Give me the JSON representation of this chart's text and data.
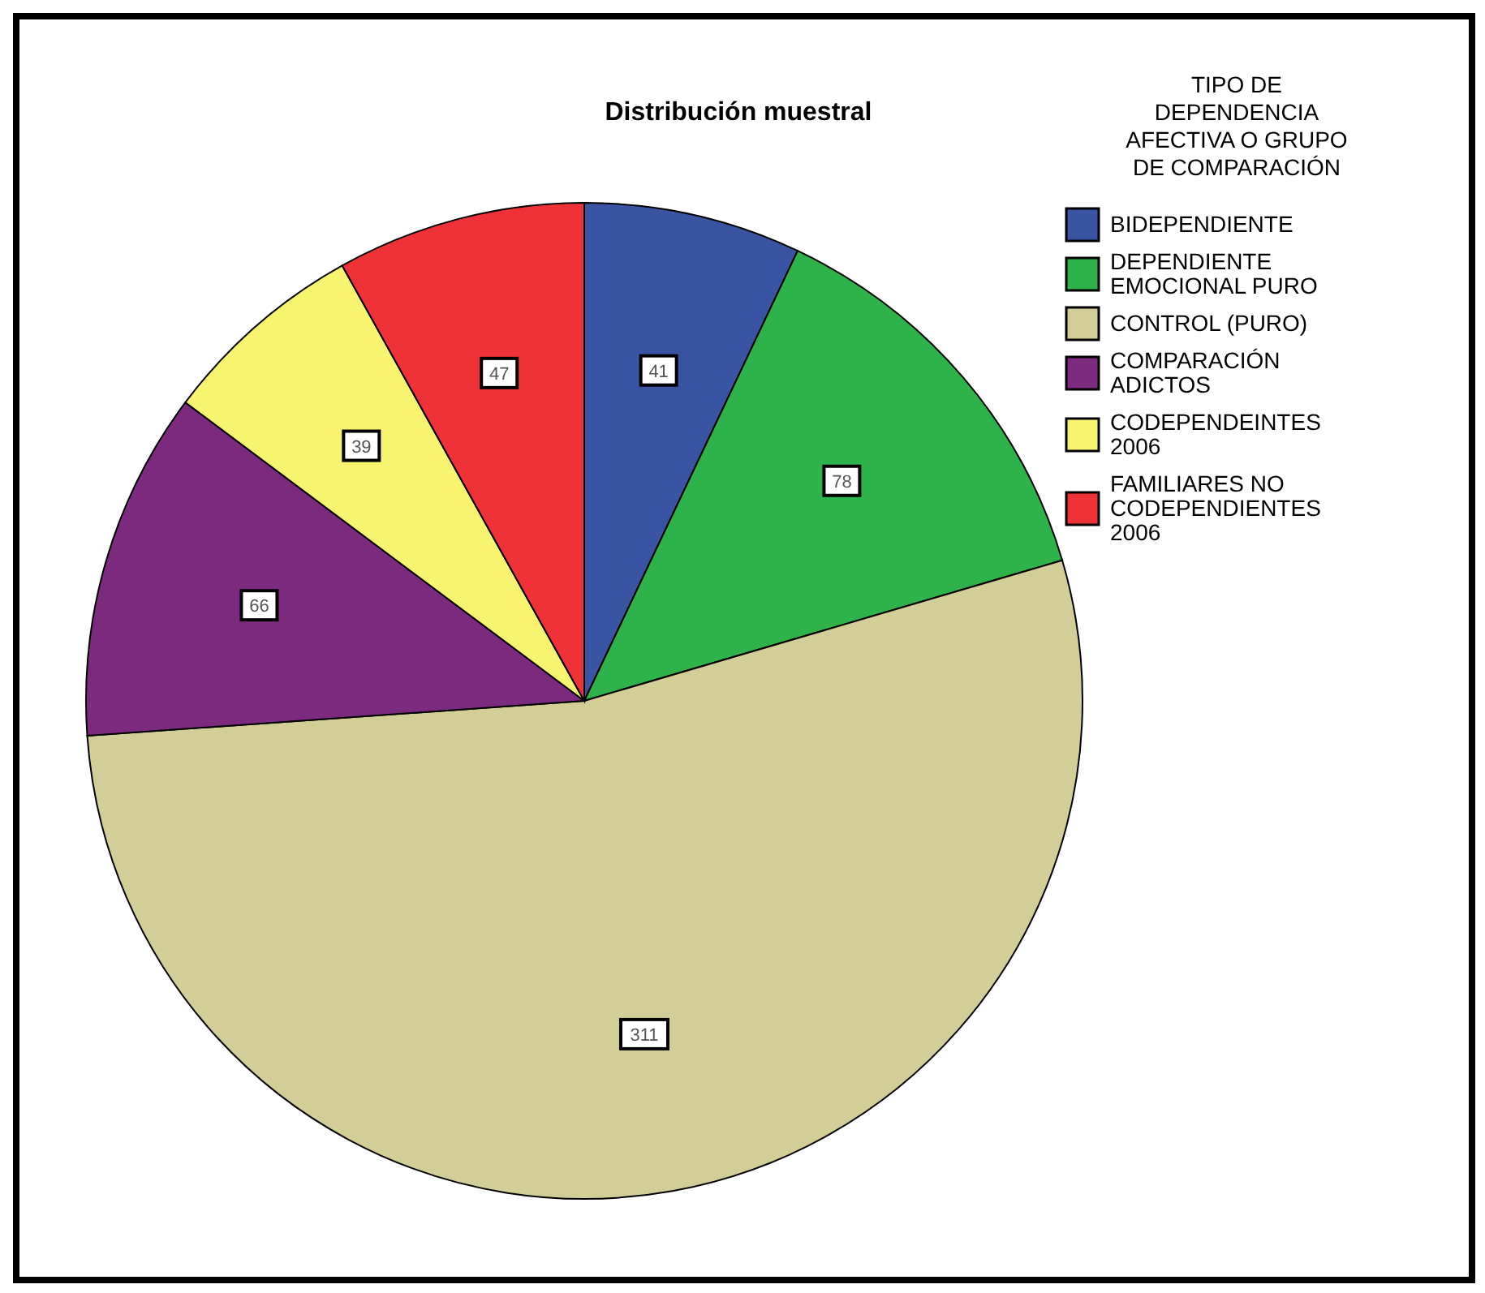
{
  "chart_data": {
    "type": "pie",
    "title": "Distribución muestral",
    "legend_title": "TIPO DE DEPENDENCIA AFECTIVA O GRUPO DE COMPARACIÓN",
    "categories": [
      "BIDEPENDIENTE",
      "DEPENDIENTE EMOCIONAL PURO",
      "CONTROL (PURO)",
      "COMPARACIÓN ADICTOS",
      "CODEPENDEINTES 2006",
      "FAMILIARES NO CODEPENDIENTES 2006"
    ],
    "values": [
      41,
      78,
      311,
      66,
      39,
      47
    ],
    "colors": [
      "#3a54a4",
      "#2db34a",
      "#d3cd98",
      "#7b2a7e",
      "#f8f46f",
      "#ee3237"
    ],
    "value_labels": [
      "41",
      "78",
      "311",
      "66",
      "39",
      "47"
    ],
    "legend": "top right"
  }
}
